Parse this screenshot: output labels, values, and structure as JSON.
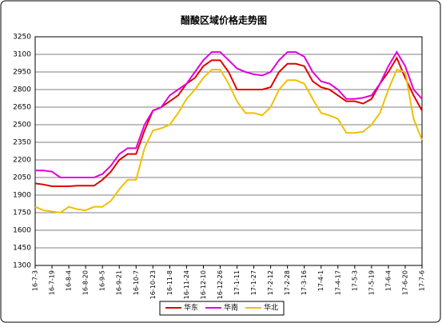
{
  "chart_data": {
    "type": "line",
    "title": "醋酸区域价格走势图",
    "categories": [
      "16-7-3",
      null,
      "16-7-19",
      null,
      "16-8-4",
      null,
      "16-8-20",
      null,
      "16-9-5",
      null,
      "16-9-21",
      null,
      "16-10-7",
      null,
      "16-10-23",
      null,
      "16-11-8",
      null,
      "16-11-24",
      null,
      "16-12-10",
      null,
      "16-12-26",
      null,
      "17-1-11",
      null,
      "17-1-27",
      null,
      "17-2-12",
      null,
      "17-2-28",
      null,
      "17-3-16",
      null,
      "17-4-1",
      null,
      "17-4-17",
      null,
      "17-5-3",
      null,
      "17-5-19",
      null,
      "17-6-4",
      null,
      "17-6-20",
      null,
      "17-7-6"
    ],
    "series": [
      {
        "name": "华东",
        "color": "#e00000",
        "values": [
          2000,
          1990,
          1975,
          1975,
          1975,
          1980,
          1980,
          1980,
          2030,
          2100,
          2200,
          2250,
          2250,
          2450,
          2620,
          2650,
          2700,
          2750,
          2850,
          2900,
          3000,
          3050,
          3050,
          2950,
          2800,
          2800,
          2800,
          2800,
          2820,
          2950,
          3020,
          3020,
          3000,
          2870,
          2820,
          2800,
          2750,
          2700,
          2700,
          2680,
          2720,
          2850,
          2950,
          3070,
          2900,
          2750,
          2620
        ]
      },
      {
        "name": "华南",
        "color": "#e000e0",
        "values": [
          2110,
          2110,
          2100,
          2050,
          2050,
          2050,
          2050,
          2050,
          2080,
          2150,
          2250,
          2300,
          2300,
          2500,
          2620,
          2650,
          2750,
          2800,
          2850,
          2950,
          3050,
          3120,
          3120,
          3050,
          2980,
          2950,
          2930,
          2920,
          2950,
          3050,
          3120,
          3120,
          3080,
          2950,
          2870,
          2850,
          2800,
          2720,
          2720,
          2730,
          2750,
          2850,
          3000,
          3120,
          3000,
          2800,
          2720
        ]
      },
      {
        "name": "华北",
        "color": "#f0c000",
        "values": [
          1800,
          1770,
          1760,
          1750,
          1800,
          1780,
          1770,
          1800,
          1800,
          1850,
          1950,
          2030,
          2030,
          2300,
          2450,
          2470,
          2500,
          2600,
          2720,
          2800,
          2900,
          2970,
          2970,
          2850,
          2700,
          2600,
          2600,
          2580,
          2650,
          2800,
          2880,
          2880,
          2850,
          2720,
          2600,
          2580,
          2550,
          2430,
          2430,
          2440,
          2500,
          2600,
          2800,
          2970,
          2950,
          2550,
          2370
        ]
      }
    ],
    "ylim": [
      1300,
      3250
    ],
    "yticks": [
      1300,
      1450,
      1600,
      1750,
      1900,
      2050,
      2200,
      2350,
      2500,
      2650,
      2800,
      2950,
      3100,
      3250
    ],
    "grid": true,
    "legend": "bottom"
  }
}
